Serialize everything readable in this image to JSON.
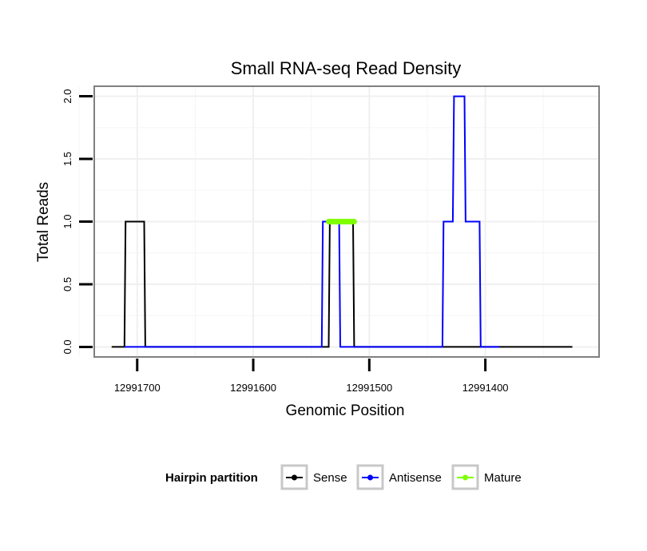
{
  "chart_data": {
    "type": "line",
    "title": "Small RNA-seq Read Density",
    "xlabel": "Genomic Position",
    "ylabel": "Total Reads",
    "x_reversed": true,
    "xlim": [
      12991737,
      12991302
    ],
    "ylim": [
      -0.08,
      2.08
    ],
    "x_ticks": [
      12991700,
      12991600,
      12991500,
      12991400
    ],
    "x_tick_labels": [
      "12991700",
      "12991600",
      "12991500",
      "12991400"
    ],
    "y_ticks": [
      0,
      0.5,
      1,
      1.5,
      2
    ],
    "y_tick_labels": [
      "0.0",
      "0.5",
      "1.0",
      "1.5",
      "2.0"
    ],
    "grid": true,
    "legend": {
      "title": "Hairpin partition",
      "position": "bottom",
      "entries": [
        {
          "label": "Sense",
          "color": "#000000"
        },
        {
          "label": "Antisense",
          "color": "#0000ff"
        },
        {
          "label": "Mature",
          "color": "#7fff00"
        }
      ]
    },
    "series": [
      {
        "name": "Sense",
        "color": "#000000",
        "x": [
          12991722,
          12991711,
          12991710,
          12991694,
          12991693,
          12991535,
          12991534,
          12991514,
          12991513,
          12991325
        ],
        "y": [
          0,
          0,
          1,
          1,
          0,
          0,
          1,
          1,
          0,
          0
        ]
      },
      {
        "name": "Antisense",
        "color": "#0000ff",
        "x": [
          12991711,
          12991694,
          12991560,
          12991541,
          12991540,
          12991526,
          12991525,
          12991485,
          12991484,
          12991437,
          12991436,
          12991428,
          12991427,
          12991418,
          12991417,
          12991405,
          12991404,
          12991397,
          12991396,
          12991388
        ],
        "y": [
          0,
          0,
          0,
          0,
          1,
          1,
          0,
          0,
          0,
          0,
          1,
          1,
          2,
          2,
          1,
          1,
          0,
          0,
          0,
          0
        ]
      },
      {
        "name": "Mature",
        "color": "#7fff00",
        "x": [
          12991535,
          12991513
        ],
        "y": [
          1,
          1
        ]
      }
    ]
  }
}
